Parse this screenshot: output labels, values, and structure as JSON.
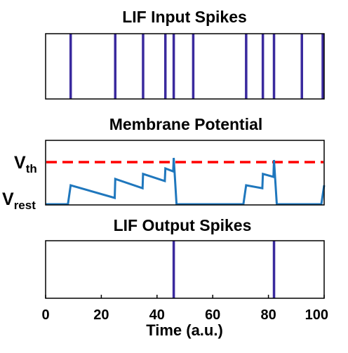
{
  "chart_data": [
    {
      "type": "event-raster",
      "title": "LIF Input Spikes",
      "xlim": [
        0,
        100
      ],
      "spike_times": [
        9,
        25,
        35,
        43,
        46,
        53,
        72,
        78,
        82,
        92,
        99.5
      ],
      "color": "#3a2a9e"
    },
    {
      "type": "line",
      "title": "Membrane Potential",
      "xlim": [
        0,
        100
      ],
      "ylim": [
        0,
        1.2
      ],
      "y_tick_labels": {
        "threshold": "V",
        "threshold_sub": "th",
        "rest": "V",
        "rest_sub": "rest"
      },
      "threshold": 1.0,
      "threshold_color": "#ff0000",
      "line_color": "#1f77bd",
      "x": [
        0,
        8,
        9,
        24.8,
        25,
        34.8,
        35,
        42.8,
        43,
        45.8,
        46,
        47,
        71,
        72,
        77.8,
        78,
        81.8,
        82,
        83,
        99,
        100
      ],
      "y": [
        0,
        0,
        0.45,
        0.15,
        0.6,
        0.38,
        0.72,
        0.55,
        0.85,
        0.78,
        1.1,
        0,
        0,
        0.45,
        0.38,
        0.72,
        0.65,
        1.05,
        0,
        0,
        0.45
      ]
    },
    {
      "type": "event-raster",
      "title": "LIF Output Spikes",
      "xlim": [
        0,
        100
      ],
      "xlabel": "Time (a.u.)",
      "x_ticks": [
        0,
        20,
        40,
        60,
        80,
        100
      ],
      "spike_times": [
        46,
        82
      ],
      "color": "#3a2a9e"
    }
  ]
}
